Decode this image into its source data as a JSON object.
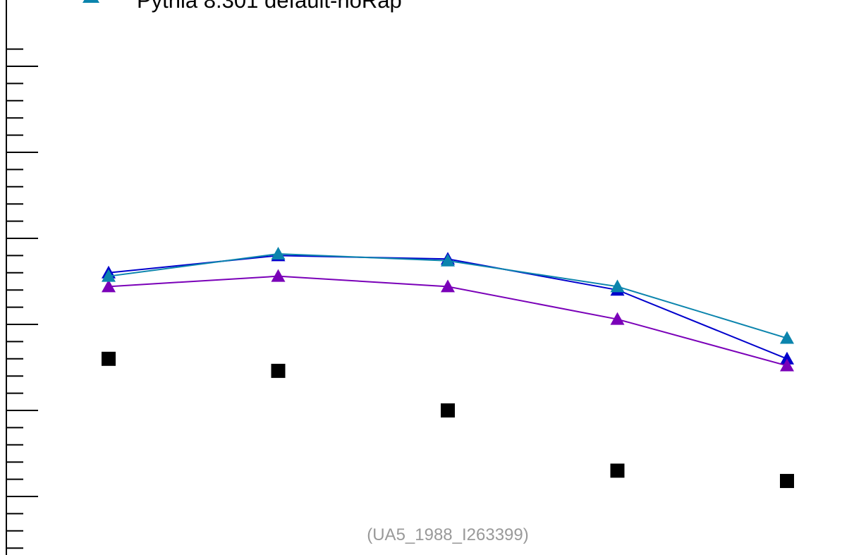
{
  "chart_data": {
    "type": "scatter",
    "x": [
      1,
      2,
      3,
      4,
      5
    ],
    "ylim": [
      0,
      3.1
    ],
    "grid": false,
    "legend_position": "top",
    "series": [
      {
        "name": "",
        "kind": "points",
        "marker": "square",
        "color": "#000000",
        "values": [
          1.3,
          1.23,
          1.0,
          0.65,
          0.59
        ]
      },
      {
        "name": "",
        "kind": "line",
        "marker": "triangle",
        "color": "#0000cc",
        "values": [
          1.8,
          1.9,
          1.88,
          1.7,
          1.3
        ]
      },
      {
        "name": "",
        "kind": "line",
        "marker": "triangle",
        "color": "#7a00b8",
        "values": [
          1.72,
          1.78,
          1.72,
          1.53,
          1.26
        ]
      },
      {
        "name": "Pythia 8.301 default-noRap",
        "kind": "line",
        "marker": "triangle",
        "color": "#0b84ad",
        "values": [
          1.78,
          1.91,
          1.87,
          1.72,
          1.42
        ]
      }
    ],
    "watermark": "(UA5_1988_I263399)"
  }
}
